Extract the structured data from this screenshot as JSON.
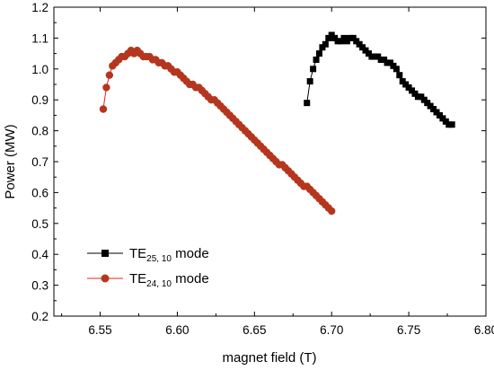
{
  "chart_data": {
    "type": "scatter",
    "title": "",
    "xlabel": "magnet field (T)",
    "ylabel": "Power (MW)",
    "xlim": [
      6.52,
      6.8
    ],
    "ylim": [
      0.2,
      1.2
    ],
    "xticks": [
      "6.55",
      "6.60",
      "6.65",
      "6.70",
      "6.75",
      "6.80"
    ],
    "yticks": [
      "0.2",
      "0.3",
      "0.4",
      "0.5",
      "0.6",
      "0.7",
      "0.8",
      "0.9",
      "1.0",
      "1.1",
      "1.2"
    ],
    "grid": false,
    "legend_position": "bottom-left",
    "series": [
      {
        "name_main": "TE",
        "name_sub": "25, 10",
        "name_suffix": " mode",
        "color": "#000000",
        "marker": "square",
        "x": [
          6.684,
          6.686,
          6.688,
          6.69,
          6.692,
          6.694,
          6.696,
          6.698,
          6.7,
          6.702,
          6.704,
          6.706,
          6.708,
          6.71,
          6.712,
          6.714,
          6.716,
          6.718,
          6.72,
          6.722,
          6.724,
          6.726,
          6.728,
          6.73,
          6.732,
          6.734,
          6.736,
          6.738,
          6.74,
          6.742,
          6.744,
          6.746,
          6.748,
          6.75,
          6.752,
          6.754,
          6.756,
          6.758,
          6.76,
          6.762,
          6.764,
          6.766,
          6.768,
          6.77,
          6.772,
          6.774,
          6.776,
          6.778
        ],
        "y": [
          0.89,
          0.96,
          1.0,
          1.03,
          1.05,
          1.07,
          1.08,
          1.1,
          1.11,
          1.1,
          1.09,
          1.09,
          1.1,
          1.09,
          1.1,
          1.1,
          1.09,
          1.08,
          1.07,
          1.06,
          1.05,
          1.04,
          1.04,
          1.04,
          1.03,
          1.03,
          1.02,
          1.02,
          1.01,
          1.0,
          0.98,
          0.96,
          0.95,
          0.94,
          0.93,
          0.92,
          0.91,
          0.91,
          0.9,
          0.89,
          0.88,
          0.87,
          0.86,
          0.85,
          0.84,
          0.83,
          0.82,
          0.82
        ]
      },
      {
        "name_main": "TE",
        "name_sub": "24, 10",
        "name_suffix": " mode",
        "color": "#b5361e",
        "line_color": "#e8201a",
        "marker": "circle",
        "x": [
          6.552,
          6.554,
          6.556,
          6.558,
          6.56,
          6.562,
          6.564,
          6.566,
          6.568,
          6.57,
          6.572,
          6.574,
          6.576,
          6.578,
          6.58,
          6.582,
          6.584,
          6.586,
          6.588,
          6.59,
          6.592,
          6.594,
          6.596,
          6.598,
          6.6,
          6.602,
          6.604,
          6.606,
          6.608,
          6.61,
          6.612,
          6.614,
          6.616,
          6.618,
          6.62,
          6.622,
          6.624,
          6.626,
          6.628,
          6.63,
          6.632,
          6.634,
          6.636,
          6.638,
          6.64,
          6.642,
          6.644,
          6.646,
          6.648,
          6.65,
          6.652,
          6.654,
          6.656,
          6.658,
          6.66,
          6.662,
          6.664,
          6.666,
          6.668,
          6.67,
          6.672,
          6.674,
          6.676,
          6.678,
          6.68,
          6.682,
          6.684,
          6.686,
          6.688,
          6.69,
          6.692,
          6.694,
          6.696,
          6.698,
          6.7
        ],
        "y": [
          0.87,
          0.94,
          0.98,
          1.01,
          1.02,
          1.03,
          1.04,
          1.04,
          1.05,
          1.06,
          1.05,
          1.06,
          1.05,
          1.04,
          1.04,
          1.04,
          1.03,
          1.03,
          1.02,
          1.02,
          1.01,
          1.01,
          1.0,
          0.99,
          0.99,
          0.98,
          0.97,
          0.96,
          0.95,
          0.95,
          0.94,
          0.94,
          0.93,
          0.92,
          0.91,
          0.9,
          0.9,
          0.89,
          0.88,
          0.87,
          0.86,
          0.85,
          0.84,
          0.83,
          0.82,
          0.81,
          0.8,
          0.79,
          0.78,
          0.77,
          0.76,
          0.75,
          0.74,
          0.73,
          0.72,
          0.71,
          0.7,
          0.69,
          0.69,
          0.68,
          0.67,
          0.66,
          0.65,
          0.64,
          0.63,
          0.62,
          0.62,
          0.61,
          0.6,
          0.59,
          0.58,
          0.57,
          0.56,
          0.55,
          0.54
        ]
      }
    ]
  }
}
